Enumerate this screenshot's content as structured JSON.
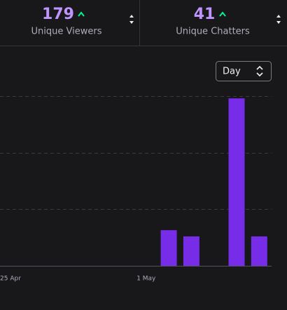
{
  "stats": [
    {
      "value": 179,
      "label": "Unique Viewers"
    },
    {
      "value": 41,
      "label": "Unique Chatters"
    }
  ],
  "period": "Day",
  "chart_data": {
    "type": "bar",
    "categories": [
      "25 Apr",
      null,
      null,
      null,
      null,
      null,
      "1 May",
      null,
      null,
      null,
      null,
      null
    ],
    "values": [
      0,
      0,
      0,
      0,
      0,
      0,
      0,
      0.63,
      0.52,
      0,
      2.96,
      0.52
    ],
    "color": "#772ce8",
    "ylim": [
      0,
      3
    ],
    "yticks": [
      0,
      1,
      2,
      3
    ],
    "grid": true
  }
}
